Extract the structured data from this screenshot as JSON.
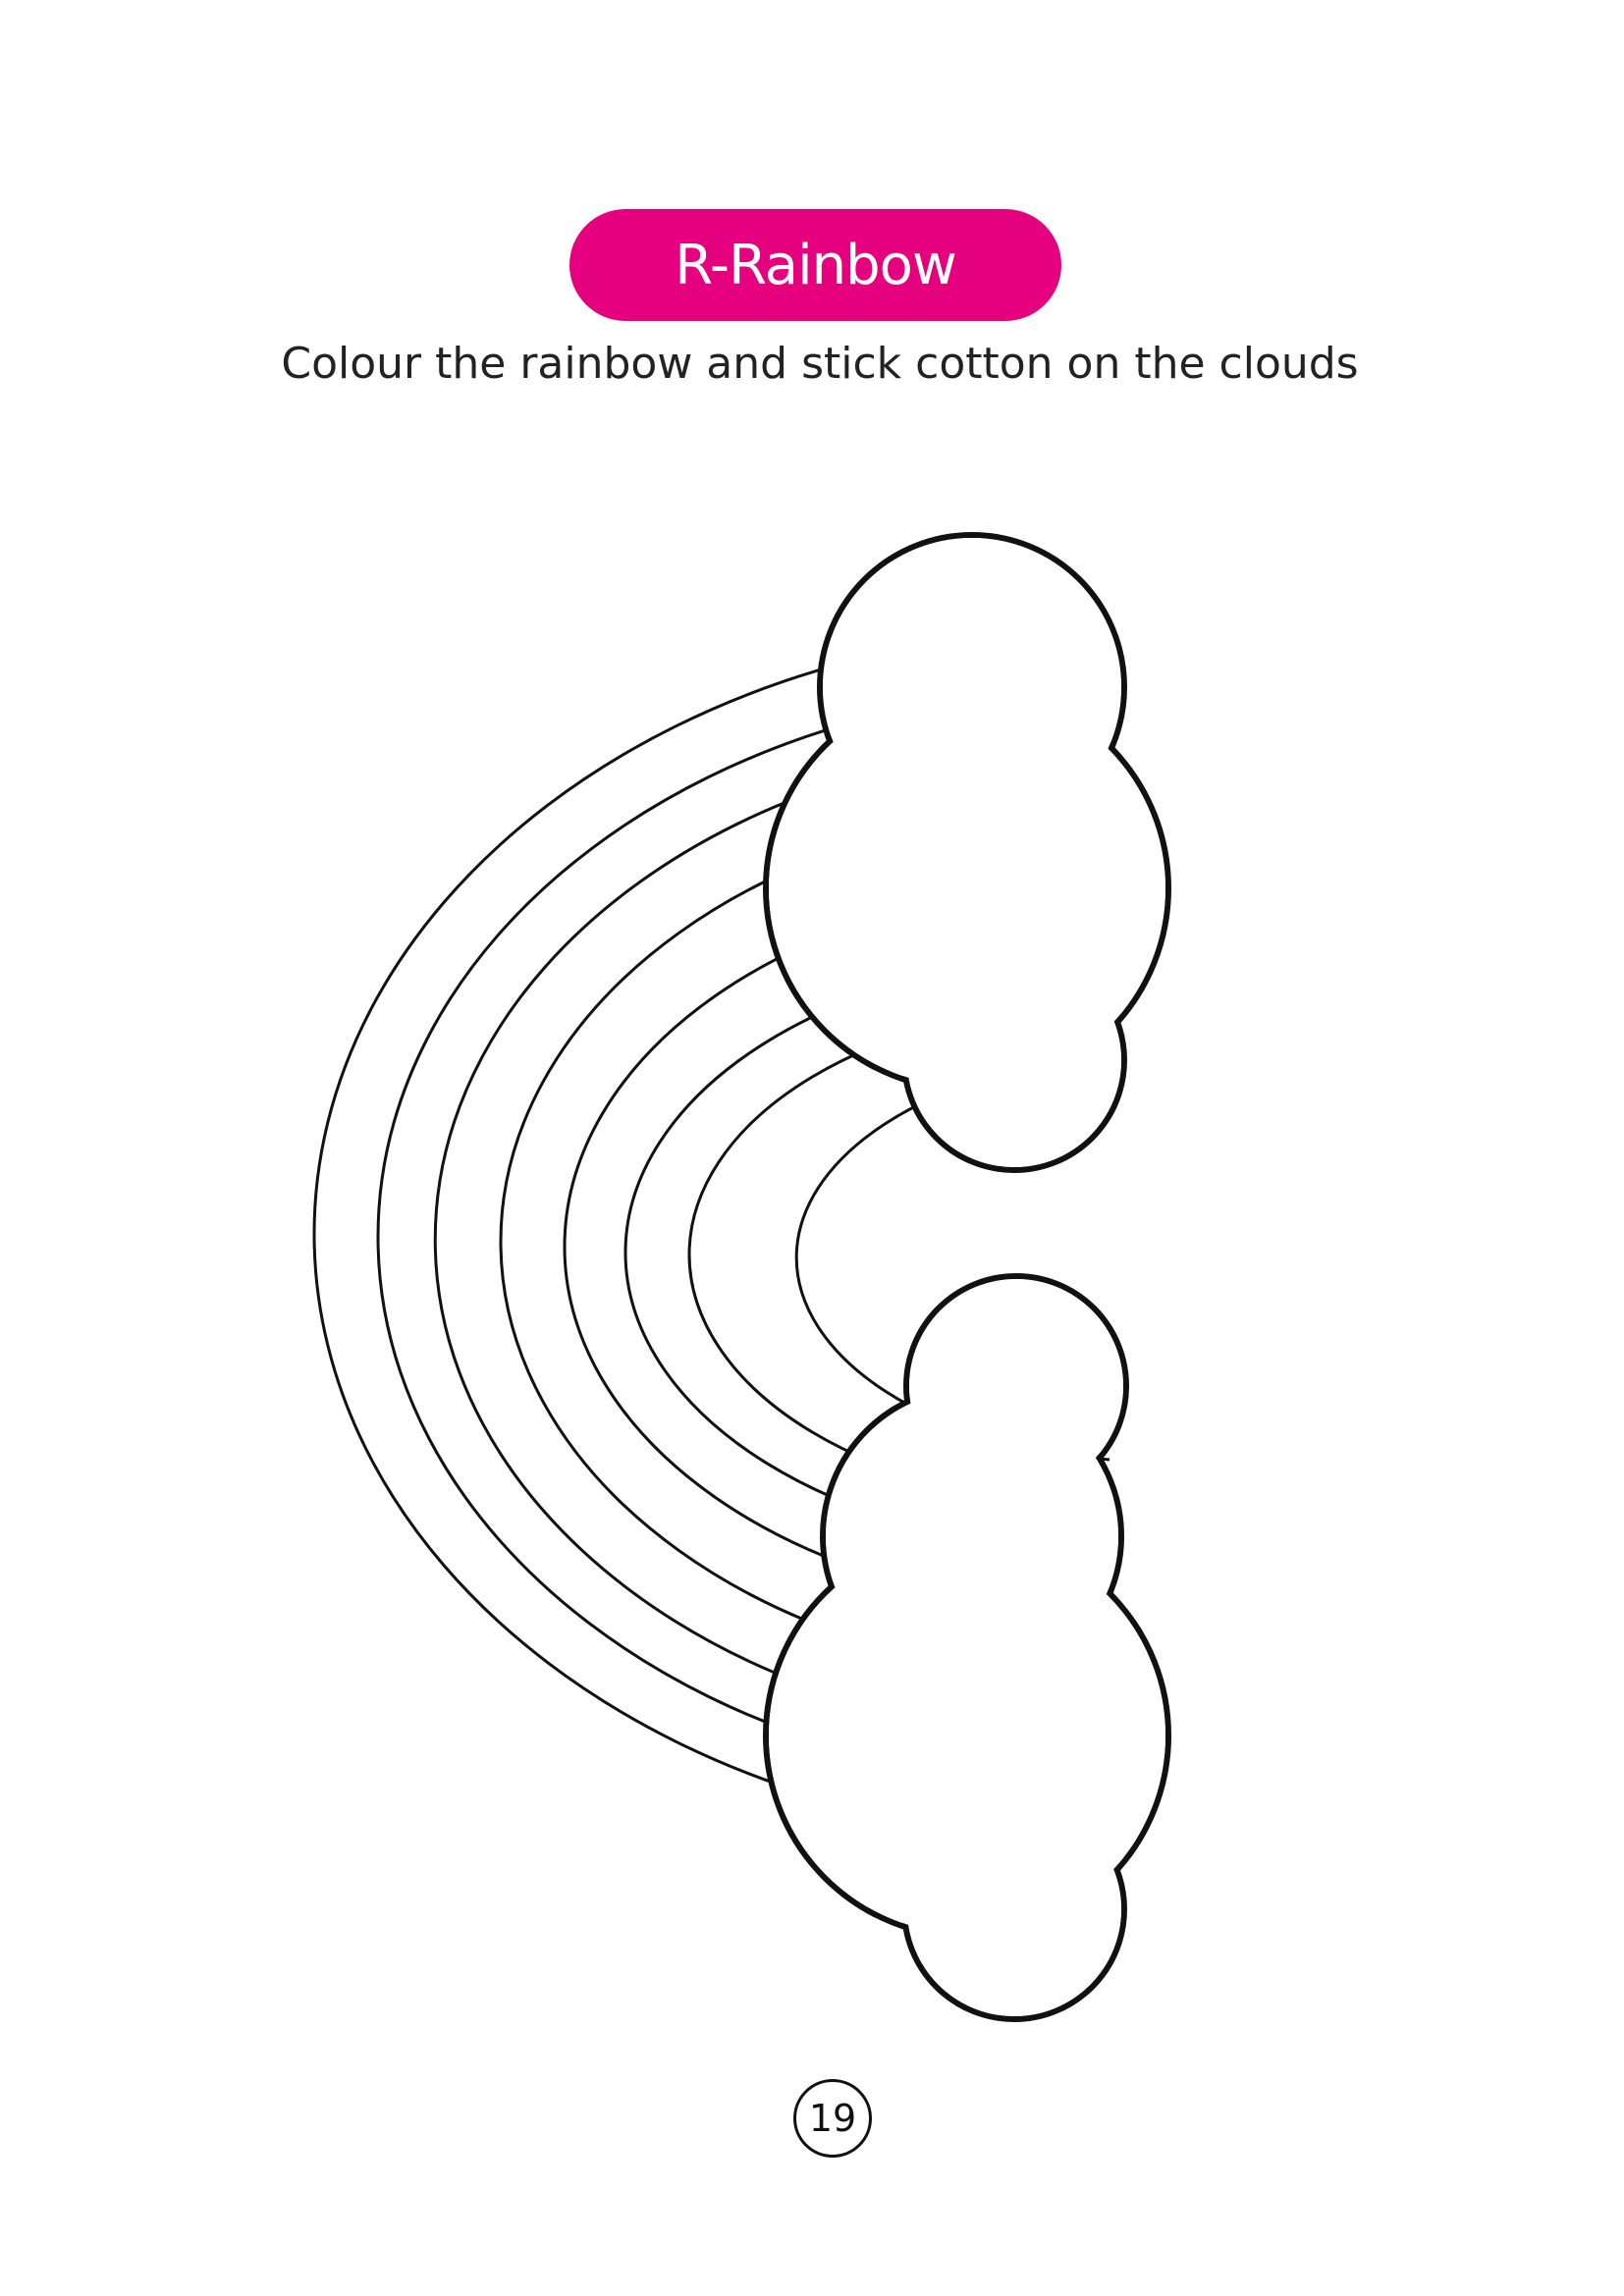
{
  "title": "R-Rainbow",
  "instruction": "Colour the rainbow and stick cotton on the clouds",
  "page_number": "19",
  "colors": {
    "title_pill": "#e5007e",
    "title_text": "#ffffff",
    "outline": "#111111"
  },
  "artwork": {
    "rainbow_band_count": 7,
    "cloud_count": 2
  }
}
